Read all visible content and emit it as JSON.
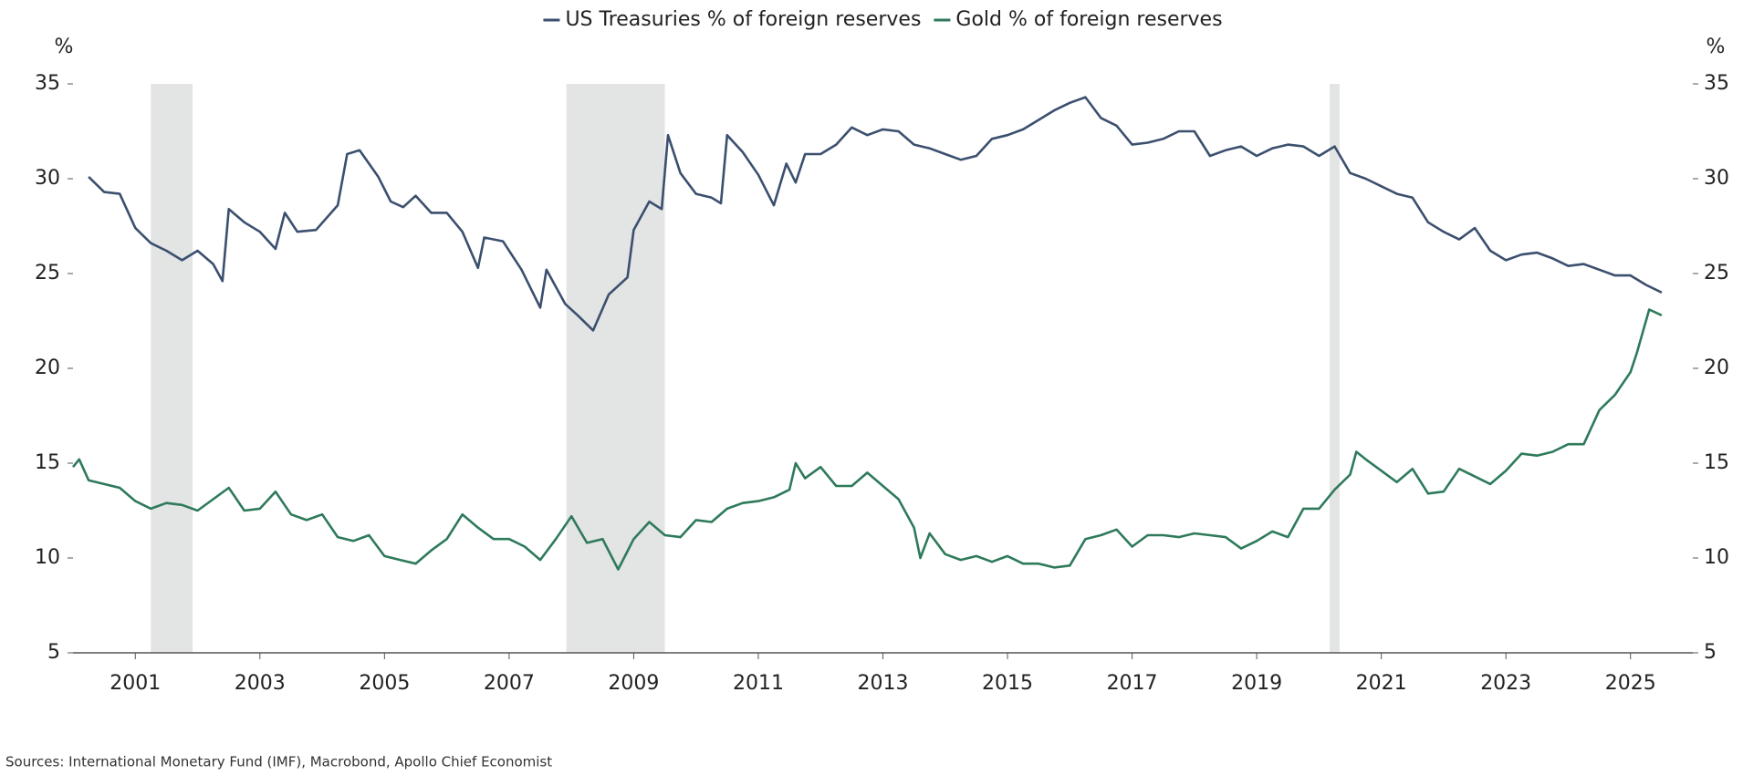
{
  "chart_data": {
    "type": "line",
    "y_unit": "%",
    "y2_unit": "%",
    "source": "Sources: International Monetary Fund (IMF), Macrobond, Apollo Chief Economist",
    "xlim": [
      2000,
      2026
    ],
    "xticks": [
      2001,
      2003,
      2005,
      2007,
      2009,
      2011,
      2013,
      2015,
      2017,
      2019,
      2021,
      2023,
      2025
    ],
    "ylim": [
      5,
      35
    ],
    "yticks": [
      5,
      10,
      15,
      20,
      25,
      30,
      35
    ],
    "y2lim": [
      5,
      35
    ],
    "y2ticks": [
      5,
      10,
      15,
      20,
      25,
      30,
      35
    ],
    "shaded_periods": [
      [
        2001.25,
        2001.92
      ],
      [
        2007.92,
        2009.5
      ],
      [
        2020.17,
        2020.33
      ]
    ],
    "shade_color": "#e3e4e4",
    "series": [
      {
        "name": "US Treasuries % of foreign reserves",
        "color": "#3b4f6e",
        "x": [
          2000.25,
          2000.5,
          2000.75,
          2001.0,
          2001.25,
          2001.5,
          2001.75,
          2002.0,
          2002.25,
          2002.4,
          2002.5,
          2002.75,
          2003.0,
          2003.25,
          2003.4,
          2003.6,
          2003.9,
          2004.25,
          2004.4,
          2004.6,
          2004.9,
          2005.1,
          2005.3,
          2005.5,
          2005.75,
          2006.0,
          2006.25,
          2006.5,
          2006.6,
          2006.9,
          2007.2,
          2007.5,
          2007.6,
          2007.9,
          2008.1,
          2008.35,
          2008.6,
          2008.9,
          2009.0,
          2009.25,
          2009.45,
          2009.55,
          2009.75,
          2010.0,
          2010.25,
          2010.4,
          2010.5,
          2010.75,
          2011.0,
          2011.25,
          2011.45,
          2011.6,
          2011.75,
          2012.0,
          2012.25,
          2012.5,
          2012.75,
          2013.0,
          2013.25,
          2013.5,
          2013.75,
          2014.0,
          2014.25,
          2014.5,
          2014.75,
          2015.0,
          2015.25,
          2015.5,
          2015.75,
          2016.0,
          2016.25,
          2016.5,
          2016.75,
          2017.0,
          2017.25,
          2017.5,
          2017.75,
          2018.0,
          2018.25,
          2018.5,
          2018.75,
          2019.0,
          2019.25,
          2019.5,
          2019.75,
          2020.0,
          2020.25,
          2020.5,
          2020.75,
          2021.0,
          2021.25,
          2021.5,
          2021.75,
          2022.0,
          2022.25,
          2022.5,
          2022.75,
          2023.0,
          2023.25,
          2023.5,
          2023.75,
          2024.0,
          2024.25,
          2024.5,
          2024.75,
          2025.0,
          2025.25,
          2025.5
        ],
        "values": [
          30.1,
          29.3,
          29.2,
          27.4,
          26.6,
          26.2,
          25.7,
          26.2,
          25.5,
          24.6,
          28.4,
          27.7,
          27.2,
          26.3,
          28.2,
          27.2,
          27.3,
          28.6,
          31.3,
          31.5,
          30.1,
          28.8,
          28.5,
          29.1,
          28.2,
          28.2,
          27.2,
          25.3,
          26.9,
          26.7,
          25.2,
          23.2,
          25.2,
          23.4,
          22.8,
          22.0,
          23.9,
          24.8,
          27.3,
          28.8,
          28.4,
          32.3,
          30.3,
          29.2,
          29.0,
          28.7,
          32.3,
          31.4,
          30.2,
          28.6,
          30.8,
          29.8,
          31.3,
          31.3,
          31.8,
          32.7,
          32.3,
          32.6,
          32.5,
          31.8,
          31.6,
          31.3,
          31.0,
          31.2,
          32.1,
          32.3,
          32.6,
          33.1,
          33.6,
          34.0,
          34.3,
          33.2,
          32.8,
          31.8,
          31.9,
          32.1,
          32.5,
          32.5,
          31.2,
          31.5,
          31.7,
          31.2,
          31.6,
          31.8,
          31.7,
          31.2,
          31.7,
          30.3,
          30.0,
          29.6,
          29.2,
          29.0,
          27.7,
          27.2,
          26.8,
          27.4,
          26.2,
          25.7,
          26.0,
          26.1,
          25.8,
          25.4,
          25.5,
          25.2,
          24.9,
          24.9,
          24.4,
          24.0
        ]
      },
      {
        "name": "Gold % of foreign reserves",
        "color": "#2e7a5a",
        "x": [
          2000.0,
          2000.1,
          2000.25,
          2000.5,
          2000.75,
          2001.0,
          2001.25,
          2001.5,
          2001.75,
          2002.0,
          2002.25,
          2002.5,
          2002.75,
          2003.0,
          2003.25,
          2003.5,
          2003.75,
          2004.0,
          2004.25,
          2004.5,
          2004.75,
          2005.0,
          2005.25,
          2005.5,
          2005.75,
          2006.0,
          2006.25,
          2006.5,
          2006.75,
          2007.0,
          2007.25,
          2007.5,
          2007.75,
          2008.0,
          2008.25,
          2008.5,
          2008.75,
          2009.0,
          2009.25,
          2009.5,
          2009.75,
          2010.0,
          2010.25,
          2010.5,
          2010.75,
          2011.0,
          2011.25,
          2011.5,
          2011.6,
          2011.75,
          2012.0,
          2012.25,
          2012.5,
          2012.75,
          2013.0,
          2013.25,
          2013.5,
          2013.6,
          2013.75,
          2014.0,
          2014.25,
          2014.5,
          2014.75,
          2015.0,
          2015.25,
          2015.5,
          2015.75,
          2016.0,
          2016.25,
          2016.5,
          2016.75,
          2017.0,
          2017.25,
          2017.5,
          2017.75,
          2018.0,
          2018.25,
          2018.5,
          2018.75,
          2019.0,
          2019.25,
          2019.5,
          2019.75,
          2020.0,
          2020.25,
          2020.5,
          2020.6,
          2020.75,
          2021.0,
          2021.25,
          2021.5,
          2021.75,
          2022.0,
          2022.25,
          2022.5,
          2022.75,
          2023.0,
          2023.25,
          2023.5,
          2023.75,
          2024.0,
          2024.25,
          2024.5,
          2024.75,
          2025.0,
          2025.1,
          2025.3,
          2025.5
        ],
        "values": [
          14.8,
          15.2,
          14.1,
          13.9,
          13.7,
          13.0,
          12.6,
          12.9,
          12.8,
          12.5,
          13.1,
          13.7,
          12.5,
          12.6,
          13.5,
          12.3,
          12.0,
          12.3,
          11.1,
          10.9,
          11.2,
          10.1,
          9.9,
          9.7,
          10.4,
          11.0,
          12.3,
          11.6,
          11.0,
          11.0,
          10.6,
          9.9,
          11.0,
          12.2,
          10.8,
          11.0,
          9.4,
          11.0,
          11.9,
          11.2,
          11.1,
          12.0,
          11.9,
          12.6,
          12.9,
          13.0,
          13.2,
          13.6,
          15.0,
          14.2,
          14.8,
          13.8,
          13.8,
          14.5,
          13.8,
          13.1,
          11.6,
          10.0,
          11.3,
          10.2,
          9.9,
          10.1,
          9.8,
          10.1,
          9.7,
          9.7,
          9.5,
          9.6,
          11.0,
          11.2,
          11.5,
          10.6,
          11.2,
          11.2,
          11.1,
          11.3,
          11.2,
          11.1,
          10.5,
          10.9,
          11.4,
          11.1,
          12.6,
          12.6,
          13.6,
          14.4,
          15.6,
          15.2,
          14.6,
          14.0,
          14.7,
          13.4,
          13.5,
          14.7,
          14.3,
          13.9,
          14.6,
          15.5,
          15.4,
          15.6,
          16.0,
          16.0,
          17.8,
          18.6,
          19.8,
          20.8,
          23.1,
          22.8
        ]
      }
    ]
  }
}
